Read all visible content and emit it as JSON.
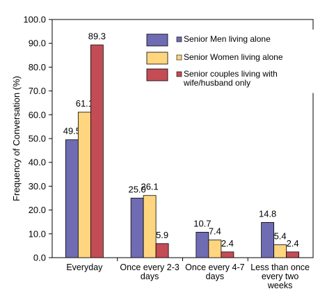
{
  "chart_data": {
    "type": "bar",
    "ylabel": "Frequency of Conversation (%)",
    "ylim": [
      0,
      100
    ],
    "yticks": [
      "0.0",
      "10.0",
      "20.0",
      "30.0",
      "40.0",
      "50.0",
      "60.0",
      "70.0",
      "80.0",
      "90.0",
      "100.0"
    ],
    "categories": [
      [
        "Everyday"
      ],
      [
        "Once every 2-3",
        "days"
      ],
      [
        "Once every 4-7",
        "days"
      ],
      [
        "Less than once",
        "every two",
        "weeks"
      ]
    ],
    "series": [
      {
        "name": "Senior Men living alone",
        "color": "#6f6cb4",
        "values": [
          49.5,
          25.0,
          10.7,
          14.8
        ],
        "labels": [
          "49.5",
          "25.0",
          "10.7",
          "14.8"
        ]
      },
      {
        "name": "Senior Women living alone",
        "color": "#ffd580",
        "values": [
          61.1,
          26.1,
          7.4,
          5.4
        ],
        "labels": [
          "61.1",
          "26.1",
          "7.4",
          "5.4"
        ]
      },
      {
        "name": [
          "Senior couples living with",
          "wife/husband only"
        ],
        "color": "#c44c55",
        "values": [
          89.3,
          5.9,
          2.4,
          2.4
        ],
        "labels": [
          "89.3",
          "5.9",
          "2.4",
          "2.4"
        ]
      }
    ],
    "legend_position": "top-right",
    "grid": false
  }
}
